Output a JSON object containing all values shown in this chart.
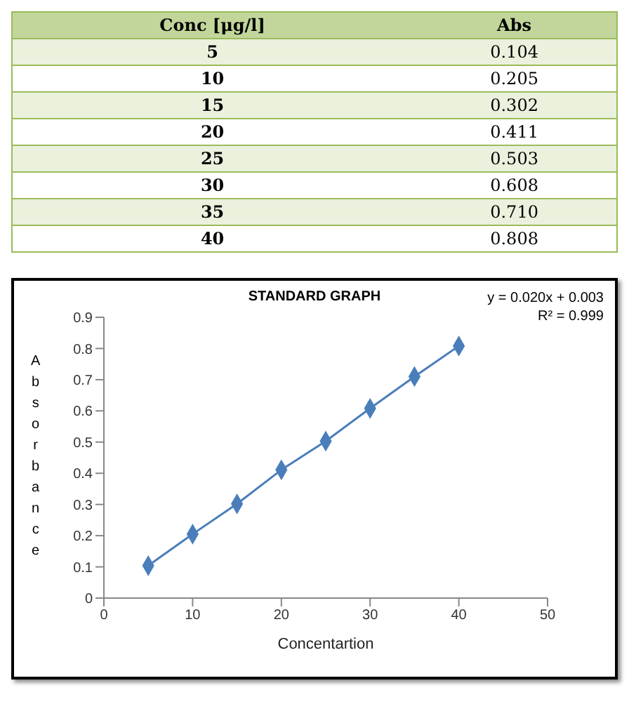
{
  "chart_data": {
    "type": "line",
    "title": "STANDARD GRAPH",
    "xlabel": "Concentartion",
    "ylabel": "Absorbance",
    "x": [
      5,
      10,
      15,
      20,
      25,
      30,
      35,
      40
    ],
    "series": [
      {
        "type": "line",
        "color": "#4a7ebb",
        "values": [
          0.104,
          0.205,
          0.302,
          0.411,
          0.503,
          0.608,
          0.71,
          0.808
        ]
      }
    ],
    "xlim": [
      0,
      50
    ],
    "xticks": [
      0,
      10,
      20,
      30,
      40,
      50
    ],
    "ylim": [
      0,
      0.9
    ],
    "yticks": [
      0,
      0.1,
      0.2,
      0.3,
      0.4,
      0.5,
      0.6,
      0.7,
      0.8,
      0.9
    ],
    "marker": "diamond",
    "line_style": "solid",
    "annotations": [
      "Conc [μg/l]",
      "Abs",
      "5",
      "0.104",
      "10",
      "0.205",
      "15",
      "0.302",
      "20",
      "0.411",
      "25",
      "0.503",
      "30",
      "0.608",
      "35",
      "0.710",
      "40",
      "0.808",
      "y = 0.020x + 0.003",
      "R² = 0.999"
    ]
  }
}
